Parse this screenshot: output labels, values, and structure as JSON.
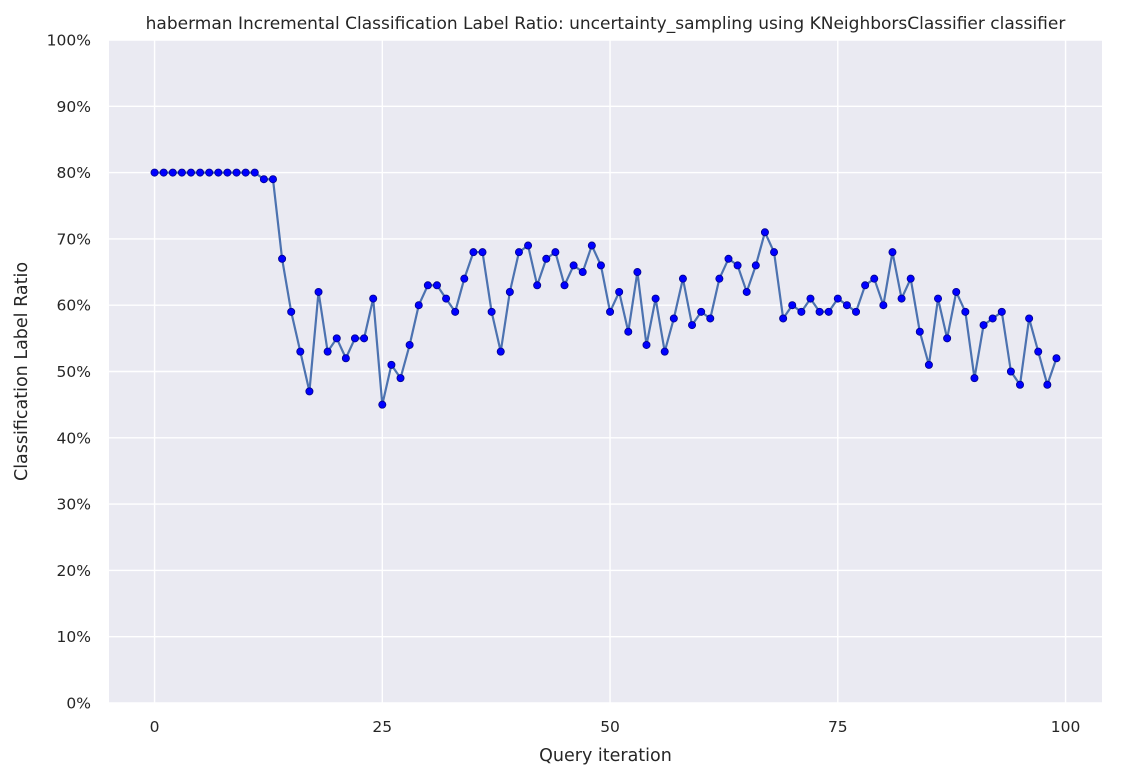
{
  "chart_data": {
    "type": "line",
    "title": "haberman Incremental Classification Label Ratio: uncertainty_sampling using KNeighborsClassifier classifier",
    "xlabel": "Query iteration",
    "ylabel": "Classification Label Ratio",
    "xlim": [
      -5,
      104
    ],
    "ylim": [
      0,
      1
    ],
    "x_ticks": [
      0,
      25,
      50,
      75,
      100
    ],
    "y_ticks": [
      0,
      0.1,
      0.2,
      0.3,
      0.4,
      0.5,
      0.6,
      0.7,
      0.8,
      0.9,
      1.0
    ],
    "x_tick_labels": [
      "0",
      "25",
      "50",
      "75",
      "100"
    ],
    "y_tick_labels": [
      "0%",
      "10%",
      "20%",
      "30%",
      "40%",
      "50%",
      "60%",
      "70%",
      "80%",
      "90%",
      "100%"
    ],
    "grid": true,
    "colors": {
      "background": "#eaeaf2",
      "grid": "#ffffff",
      "line": "#4c72b0",
      "marker": "#0000ff",
      "marker_edge": "#00008b"
    },
    "series": [
      {
        "x": [
          0,
          1,
          2,
          3,
          4,
          5,
          6,
          7,
          8,
          9,
          10,
          11,
          12,
          13,
          14,
          15,
          16,
          17,
          18,
          19,
          20,
          21,
          22,
          23,
          24,
          25,
          26,
          27,
          28,
          29,
          30,
          31,
          32,
          33,
          34,
          35,
          36,
          37,
          38,
          39,
          40,
          41,
          42,
          43,
          44,
          45,
          46,
          47,
          48,
          49,
          50,
          51,
          52,
          53,
          54,
          55,
          56,
          57,
          58,
          59,
          60,
          61,
          62,
          63,
          64,
          65,
          66,
          67,
          68,
          69,
          70,
          71,
          72,
          73,
          74,
          75,
          76,
          77,
          78,
          79,
          80,
          81,
          82,
          83,
          84,
          85,
          86,
          87,
          88,
          89,
          90,
          91,
          92,
          93,
          94,
          95,
          96,
          97,
          98,
          99
        ],
        "values": [
          0.8,
          0.8,
          0.8,
          0.8,
          0.8,
          0.8,
          0.8,
          0.8,
          0.8,
          0.8,
          0.8,
          0.8,
          0.79,
          0.79,
          0.67,
          0.59,
          0.53,
          0.47,
          0.62,
          0.53,
          0.55,
          0.52,
          0.55,
          0.55,
          0.61,
          0.45,
          0.51,
          0.49,
          0.54,
          0.6,
          0.63,
          0.63,
          0.61,
          0.59,
          0.64,
          0.68,
          0.68,
          0.59,
          0.53,
          0.62,
          0.68,
          0.69,
          0.63,
          0.67,
          0.68,
          0.63,
          0.66,
          0.65,
          0.69,
          0.66,
          0.59,
          0.62,
          0.56,
          0.65,
          0.54,
          0.61,
          0.53,
          0.58,
          0.64,
          0.57,
          0.59,
          0.58,
          0.64,
          0.67,
          0.66,
          0.62,
          0.66,
          0.71,
          0.68,
          0.58,
          0.6,
          0.59,
          0.61,
          0.59,
          0.59,
          0.61,
          0.6,
          0.59,
          0.63,
          0.64,
          0.6,
          0.68,
          0.61,
          0.64,
          0.56,
          0.51,
          0.61,
          0.55,
          0.62,
          0.59,
          0.49,
          0.57,
          0.58,
          0.59,
          0.5,
          0.48,
          0.58,
          0.53,
          0.48,
          0.52
        ]
      }
    ]
  }
}
